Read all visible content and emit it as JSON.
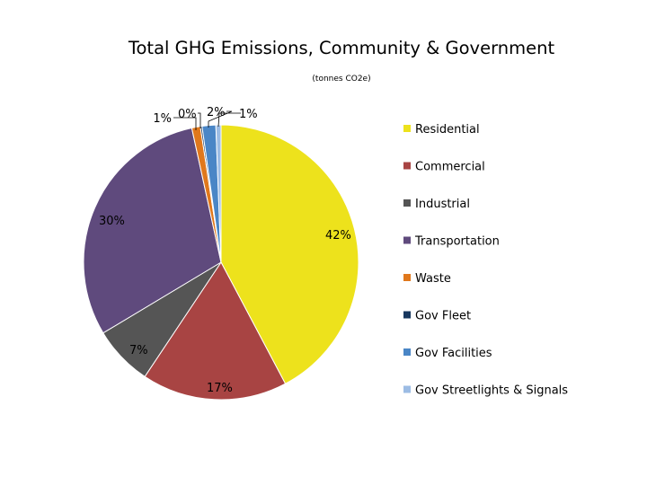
{
  "chart_data": {
    "type": "pie",
    "title": "Total GHG Emissions, Community & Government",
    "subtitle": "(tonnes CO2e)",
    "legend_position": "right",
    "categories": [
      "Residential",
      "Commercial",
      "Industrial",
      "Transportation",
      "Waste",
      "Gov Fleet",
      "Gov Facilities",
      "Gov Streetlights & Signals"
    ],
    "values": [
      42,
      17,
      7,
      30,
      1,
      0.2,
      1.6,
      0.6
    ],
    "data_labels": [
      "42%",
      "17%",
      "7%",
      "30%",
      "1%",
      "0%",
      "2%",
      "1%"
    ],
    "colors": [
      "#ede21c",
      "#a84443",
      "#555555",
      "#5f4a7d",
      "#e0781c",
      "#17375e",
      "#4a86c6",
      "#9cbce4"
    ]
  }
}
